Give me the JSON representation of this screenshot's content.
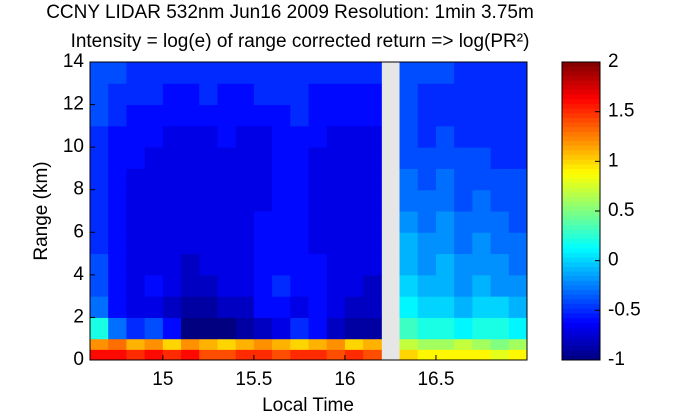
{
  "chart_data": {
    "type": "heatmap",
    "title": "CCNY LIDAR 532nm Jun16 2009 Resolution: 1min 3.75m",
    "subtitle": "Intensity = log(e) of range corrected return => log(PR²)",
    "xlabel": "Local Time",
    "ylabel": "Range (km)",
    "x_bins": [
      14.6,
      14.7,
      14.8,
      14.9,
      15.0,
      15.1,
      15.2,
      15.3,
      15.4,
      15.5,
      15.6,
      15.7,
      15.8,
      15.9,
      16.0,
      16.1,
      16.2,
      16.3,
      16.4,
      16.5,
      16.6,
      16.7,
      16.8,
      16.9,
      17.0
    ],
    "y_bins": [
      0,
      0.5,
      1,
      2,
      3,
      4,
      5,
      6,
      7,
      8,
      9,
      10,
      11,
      12,
      13,
      14
    ],
    "z": [
      [
        1.6,
        1.6,
        1.5,
        1.6,
        1.5,
        1.6,
        1.4,
        1.4,
        1.5,
        1.5,
        1.4,
        1.5,
        1.5,
        1.4,
        1.5,
        1.4,
        null,
        1.0,
        0.9,
        0.9,
        0.9,
        0.9,
        0.8,
        0.9
      ],
      [
        1.2,
        1.3,
        1.1,
        1.2,
        1.0,
        1.2,
        1.1,
        1.0,
        1.1,
        1.2,
        1.1,
        1.0,
        1.1,
        1.2,
        1.0,
        1.1,
        null,
        0.7,
        0.6,
        0.6,
        0.7,
        0.6,
        0.5,
        0.6
      ],
      [
        0.2,
        -0.3,
        -0.5,
        -0.4,
        -0.6,
        -1,
        -1,
        -1,
        -0.9,
        -0.8,
        -0.7,
        -0.5,
        -0.6,
        -0.8,
        -0.9,
        -0.9,
        null,
        0.3,
        0.2,
        0.2,
        0.1,
        0.2,
        0.2,
        0.1
      ],
      [
        -0.3,
        -0.6,
        -0.7,
        -0.7,
        -0.8,
        -0.9,
        -0.9,
        -0.8,
        -0.8,
        -0.6,
        -0.6,
        -0.7,
        -0.6,
        -0.7,
        -0.8,
        -0.8,
        null,
        0.1,
        0.0,
        0.0,
        -0.1,
        0.0,
        0.0,
        -0.1
      ],
      [
        -0.4,
        -0.6,
        -0.7,
        -0.6,
        -0.7,
        -0.8,
        -0.8,
        -0.7,
        -0.7,
        -0.6,
        -0.5,
        -0.6,
        -0.6,
        -0.7,
        -0.7,
        -0.8,
        null,
        0.0,
        -0.1,
        -0.1,
        -0.2,
        -0.1,
        -0.2,
        -0.2
      ],
      [
        -0.4,
        -0.6,
        -0.7,
        -0.7,
        -0.7,
        -0.8,
        -0.7,
        -0.7,
        -0.7,
        -0.6,
        -0.6,
        -0.6,
        -0.6,
        -0.7,
        -0.7,
        -0.7,
        null,
        -0.1,
        -0.2,
        -0.1,
        -0.2,
        -0.2,
        -0.2,
        -0.3
      ],
      [
        -0.5,
        -0.6,
        -0.7,
        -0.7,
        -0.7,
        -0.7,
        -0.7,
        -0.7,
        -0.7,
        -0.6,
        -0.6,
        -0.6,
        -0.7,
        -0.7,
        -0.7,
        -0.7,
        null,
        -0.1,
        -0.2,
        -0.2,
        -0.3,
        -0.2,
        -0.3,
        -0.3
      ],
      [
        -0.5,
        -0.6,
        -0.7,
        -0.7,
        -0.7,
        -0.7,
        -0.7,
        -0.7,
        -0.7,
        -0.6,
        -0.6,
        -0.6,
        -0.7,
        -0.7,
        -0.7,
        -0.7,
        null,
        -0.2,
        -0.3,
        -0.2,
        -0.3,
        -0.3,
        -0.3,
        -0.4
      ],
      [
        -0.5,
        -0.6,
        -0.7,
        -0.7,
        -0.7,
        -0.7,
        -0.7,
        -0.7,
        -0.7,
        -0.7,
        -0.6,
        -0.6,
        -0.7,
        -0.7,
        -0.7,
        -0.7,
        null,
        -0.3,
        -0.3,
        -0.3,
        -0.4,
        -0.3,
        -0.4,
        -0.4
      ],
      [
        -0.5,
        -0.6,
        -0.7,
        -0.7,
        -0.7,
        -0.7,
        -0.7,
        -0.7,
        -0.7,
        -0.7,
        -0.6,
        -0.6,
        -0.7,
        -0.7,
        -0.7,
        -0.7,
        null,
        -0.3,
        -0.4,
        -0.3,
        -0.4,
        -0.4,
        -0.4,
        -0.4
      ],
      [
        -0.5,
        -0.6,
        -0.6,
        -0.7,
        -0.7,
        -0.7,
        -0.7,
        -0.7,
        -0.7,
        -0.7,
        -0.6,
        -0.6,
        -0.7,
        -0.7,
        -0.7,
        -0.7,
        null,
        -0.4,
        -0.4,
        -0.4,
        -0.4,
        -0.4,
        -0.5,
        -0.5
      ],
      [
        -0.5,
        -0.6,
        -0.6,
        -0.6,
        -0.7,
        -0.7,
        -0.7,
        -0.6,
        -0.7,
        -0.7,
        -0.6,
        -0.6,
        -0.6,
        -0.7,
        -0.7,
        -0.7,
        null,
        -0.4,
        -0.5,
        -0.4,
        -0.5,
        -0.5,
        -0.5,
        -0.5
      ],
      [
        -0.4,
        -0.5,
        -0.6,
        -0.6,
        -0.6,
        -0.6,
        -0.6,
        -0.6,
        -0.6,
        -0.6,
        -0.6,
        -0.5,
        -0.6,
        -0.6,
        -0.6,
        -0.6,
        null,
        -0.4,
        -0.5,
        -0.5,
        -0.5,
        -0.5,
        -0.5,
        -0.5
      ],
      [
        -0.4,
        -0.5,
        -0.5,
        -0.5,
        -0.6,
        -0.6,
        -0.5,
        -0.6,
        -0.6,
        -0.5,
        -0.5,
        -0.5,
        -0.6,
        -0.6,
        -0.6,
        -0.6,
        null,
        -0.4,
        -0.5,
        -0.5,
        -0.5,
        -0.5,
        -0.5,
        -0.5
      ],
      [
        -0.4,
        -0.4,
        -0.5,
        -0.5,
        -0.5,
        -0.5,
        -0.5,
        -0.5,
        -0.5,
        -0.5,
        -0.5,
        -0.5,
        -0.5,
        -0.5,
        -0.5,
        -0.5,
        null,
        -0.4,
        -0.4,
        -0.4,
        -0.5,
        -0.5,
        -0.5,
        -0.5
      ]
    ],
    "colormap": "jet",
    "missing_color": "#e6e6e6",
    "xlim": [
      14.6,
      17.0
    ],
    "xticks": [
      15,
      15.5,
      16,
      16.5
    ],
    "ylim": [
      0,
      14
    ],
    "yticks": [
      0,
      2,
      4,
      6,
      8,
      10,
      12,
      14
    ],
    "zlim": [
      -1,
      2
    ],
    "zticks": [
      -1,
      -0.5,
      0,
      0.5,
      1,
      1.5,
      2
    ]
  }
}
